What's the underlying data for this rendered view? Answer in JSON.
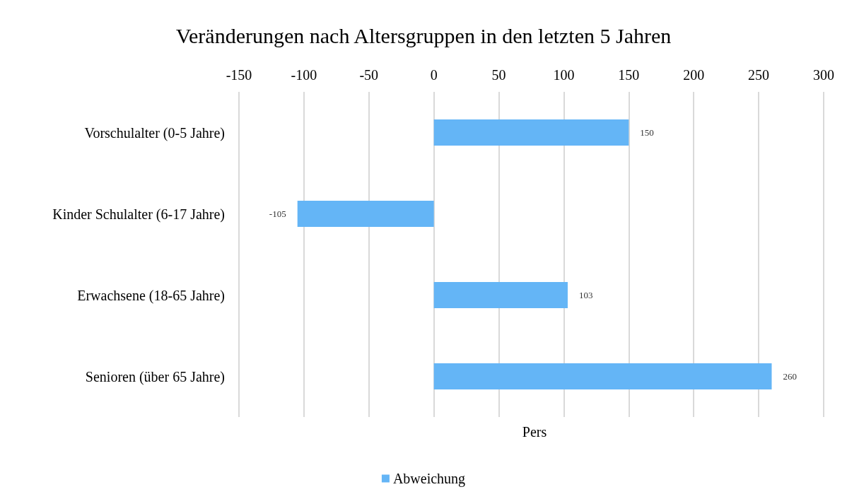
{
  "chart_data": {
    "type": "bar",
    "orientation": "horizontal",
    "title": "Veränderungen nach Altersgruppen in den letzten 5 Jahren",
    "xlabel": "Pers",
    "categories": [
      "Vorschulalter (0-5 Jahre)",
      "Kinder Schulalter (6-17 Jahre)",
      "Erwachsene (18-65 Jahre)",
      "Senioren (über 65 Jahre)"
    ],
    "series": [
      {
        "name": "Abweichung",
        "color": "#64b5f6",
        "values": [
          150,
          -105,
          103,
          260
        ]
      }
    ],
    "xlim": [
      -150,
      300
    ],
    "xticks": [
      -150,
      -100,
      -50,
      0,
      50,
      100,
      150,
      200,
      250,
      300
    ],
    "grid": "x",
    "legend": "bottom",
    "data_labels": true
  }
}
